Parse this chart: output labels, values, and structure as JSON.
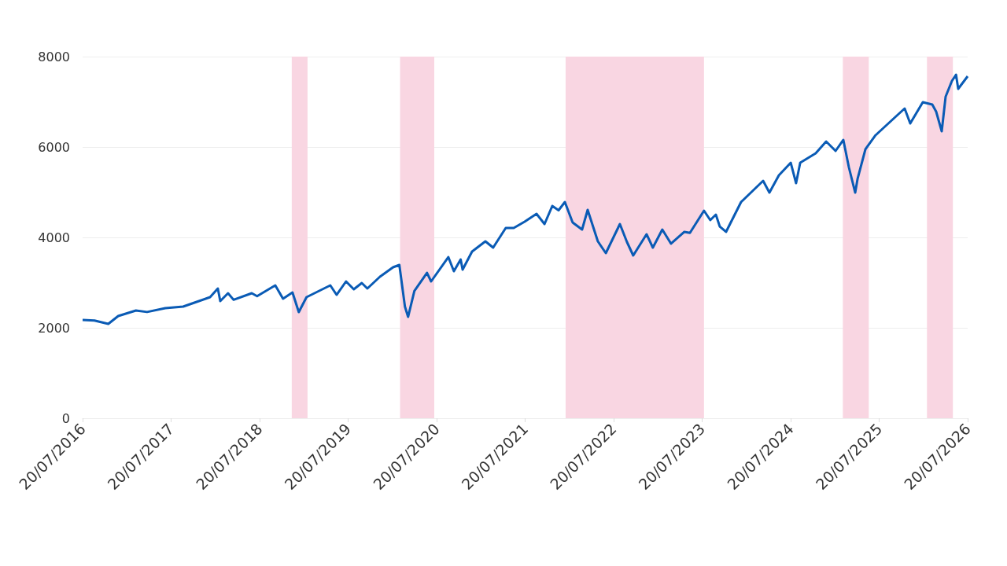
{
  "chart_data": {
    "type": "line",
    "x": [
      "2016-07-20",
      "2016-09-07",
      "2016-11-03",
      "2016-12-14",
      "2017-02-25",
      "2017-04-12",
      "2017-06-26",
      "2017-09-08",
      "2017-11-12",
      "2017-12-28",
      "2018-01-29",
      "2018-02-08",
      "2018-03-12",
      "2018-04-04",
      "2018-06-18",
      "2018-07-10",
      "2018-09-23",
      "2018-10-25",
      "2018-12-03",
      "2018-12-29",
      "2019-01-30",
      "2019-05-08",
      "2019-06-03",
      "2019-07-12",
      "2019-08-13",
      "2019-09-15",
      "2019-10-08",
      "2019-11-29",
      "2020-01-22",
      "2020-02-17",
      "2020-03-11",
      "2020-03-24",
      "2020-04-19",
      "2020-06-10",
      "2020-06-27",
      "2020-09-06",
      "2020-09-29",
      "2020-10-27",
      "2020-11-04",
      "2020-12-13",
      "2021-02-06",
      "2021-03-10",
      "2021-05-01",
      "2021-06-03",
      "2021-07-18",
      "2021-09-05",
      "2021-10-08",
      "2021-11-09",
      "2021-12-05",
      "2021-12-31",
      "2022-02-01",
      "2022-03-12",
      "2022-04-04",
      "2022-05-16",
      "2022-06-18",
      "2022-08-15",
      "2022-09-13",
      "2022-10-09",
      "2022-12-03",
      "2022-12-29",
      "2023-02-06",
      "2023-03-14",
      "2023-05-08",
      "2023-05-31",
      "2023-07-28",
      "2023-08-23",
      "2023-09-15",
      "2023-10-01",
      "2023-10-27",
      "2023-12-28",
      "2024-03-28",
      "2024-04-23",
      "2024-06-01",
      "2024-07-20",
      "2024-08-11",
      "2024-08-28",
      "2024-10-31",
      "2024-12-13",
      "2025-01-21",
      "2025-02-22",
      "2025-03-17",
      "2025-04-12",
      "2025-04-22",
      "2025-05-24",
      "2025-07-05",
      "2025-10-01",
      "2025-11-02",
      "2025-11-25",
      "2026-01-16",
      "2026-02-24",
      "2026-03-12",
      "2026-04-04",
      "2026-04-20",
      "2026-05-16",
      "2026-06-02",
      "2026-06-11",
      "2026-07-20"
    ],
    "series": [
      {
        "color": "#0a5bb5",
        "values": [
          2174,
          2160,
          2087,
          2261,
          2383,
          2350,
          2435,
          2470,
          2591,
          2678,
          2870,
          2591,
          2765,
          2620,
          2765,
          2700,
          2939,
          2643,
          2783,
          2348,
          2678,
          2939,
          2730,
          3026,
          2852,
          2991,
          2870,
          3130,
          3339,
          3391,
          2470,
          2243,
          2817,
          3217,
          3026,
          3565,
          3252,
          3513,
          3287,
          3687,
          3913,
          3774,
          4209,
          4209,
          4348,
          4522,
          4296,
          4696,
          4600,
          4783,
          4330,
          4174,
          4609,
          3913,
          3652,
          4296,
          3900,
          3600,
          4070,
          3774,
          4174,
          3861,
          4122,
          4100,
          4591,
          4383,
          4504,
          4243,
          4122,
          4783,
          5252,
          4991,
          5374,
          5652,
          5200,
          5652,
          5861,
          6122,
          5913,
          6157,
          5548,
          4991,
          5304,
          5948,
          6261,
          6696,
          6852,
          6522,
          6991,
          6939,
          6783,
          6348,
          7113,
          7461,
          7600,
          7287,
          7565
        ]
      }
    ],
    "xlim": [
      "2016-07-20",
      "2026-07-20"
    ],
    "xticks": [
      {
        "value": "2016-07-20",
        "label": "20/07/2016"
      },
      {
        "value": "2017-07-20",
        "label": "20/07/2017"
      },
      {
        "value": "2018-07-20",
        "label": "20/07/2018"
      },
      {
        "value": "2019-07-20",
        "label": "20/07/2019"
      },
      {
        "value": "2020-07-20",
        "label": "20/07/2020"
      },
      {
        "value": "2021-07-20",
        "label": "20/07/2021"
      },
      {
        "value": "2022-07-20",
        "label": "20/07/2022"
      },
      {
        "value": "2023-07-20",
        "label": "20/07/2023"
      },
      {
        "value": "2024-07-20",
        "label": "20/07/2024"
      },
      {
        "value": "2025-07-20",
        "label": "20/07/2025"
      },
      {
        "value": "2026-07-20",
        "label": "20/07/2026"
      }
    ],
    "ylim": [
      0,
      8000
    ],
    "yticks": [
      0,
      2000,
      4000,
      6000,
      8000
    ],
    "bands": [
      {
        "axis": "x",
        "from": "2018-11-30",
        "to": "2019-02-03",
        "color": "#f9d6e2"
      },
      {
        "axis": "x",
        "from": "2020-02-20",
        "to": "2020-07-10",
        "color": "#f9d6e2"
      },
      {
        "axis": "x",
        "from": "2022-01-03",
        "to": "2023-07-28",
        "color": "#f9d6e2"
      },
      {
        "axis": "x",
        "from": "2025-02-20",
        "to": "2025-06-07",
        "color": "#f9d6e2"
      },
      {
        "axis": "x",
        "from": "2026-02-02",
        "to": "2026-05-20",
        "color": "#f9d6e2"
      }
    ],
    "grid": "y",
    "marker": "none",
    "line_style": "solid"
  }
}
